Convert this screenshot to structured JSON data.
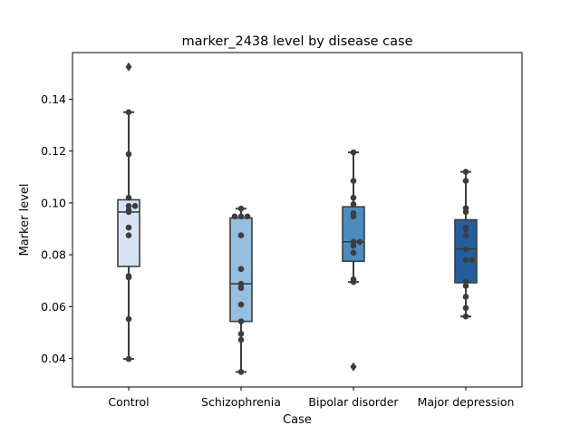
{
  "chart_data": {
    "type": "box",
    "title": "marker_2438 level by disease case",
    "xlabel": "Case",
    "ylabel": "Marker level",
    "ylim": [
      0.029,
      0.158
    ],
    "yticks": [
      0.04,
      0.06,
      0.08,
      0.1,
      0.12,
      0.14
    ],
    "ytick_labels": [
      "0.04",
      "0.06",
      "0.08",
      "0.10",
      "0.12",
      "0.14"
    ],
    "grid": false,
    "legend": "none",
    "categories": [
      "Control",
      "Schizophrenia",
      "Bipolar disorder",
      "Major depression"
    ],
    "colors": [
      "#d6e4f4",
      "#95bfdf",
      "#4b8cc0",
      "#235f9f"
    ],
    "point_color": "#3d3d3d",
    "series": [
      {
        "category": "Control",
        "box": {
          "q1": 0.0755,
          "median": 0.0965,
          "q3": 0.1012,
          "whisker_low": 0.0398,
          "whisker_high": 0.135
        },
        "outliers": [
          0.1525
        ],
        "points": [
          0.135,
          0.1188,
          0.102,
          0.0988,
          0.0988,
          0.0972,
          0.0965,
          0.0905,
          0.0875,
          0.0718,
          0.0713,
          0.0552,
          0.0398
        ]
      },
      {
        "category": "Schizophrenia",
        "box": {
          "q1": 0.0543,
          "median": 0.0688,
          "q3": 0.0942,
          "whisker_low": 0.0348,
          "whisker_high": 0.0978
        },
        "outliers": [],
        "points": [
          0.0978,
          0.0948,
          0.0948,
          0.0948,
          0.0875,
          0.0745,
          0.0688,
          0.0672,
          0.0608,
          0.0543,
          0.0495,
          0.0472,
          0.0348
        ]
      },
      {
        "category": "Bipolar disorder",
        "box": {
          "q1": 0.0775,
          "median": 0.085,
          "q3": 0.0985,
          "whisker_low": 0.0695,
          "whisker_high": 0.1195
        },
        "outliers": [
          0.0368
        ],
        "points": [
          0.1195,
          0.1085,
          0.102,
          0.0995,
          0.096,
          0.0948,
          0.085,
          0.085,
          0.0835,
          0.0808,
          0.0705,
          0.0695
        ]
      },
      {
        "category": "Major depression",
        "box": {
          "q1": 0.0692,
          "median": 0.0822,
          "q3": 0.0935,
          "whisker_low": 0.0562,
          "whisker_high": 0.112
        },
        "outliers": [],
        "points": [
          0.112,
          0.1085,
          0.098,
          0.0965,
          0.0905,
          0.0898,
          0.0875,
          0.0822,
          0.078,
          0.078,
          0.0698,
          0.068,
          0.0638,
          0.0595,
          0.0562
        ]
      }
    ]
  }
}
